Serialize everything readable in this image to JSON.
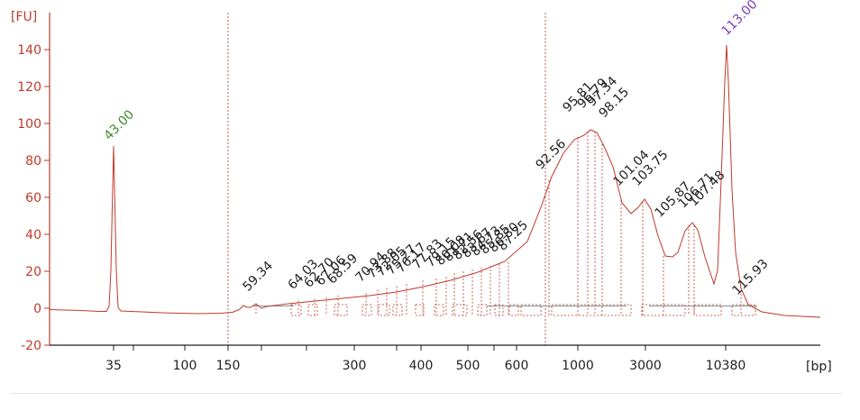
{
  "chart_data": {
    "type": "line",
    "y_unit": "[FU]",
    "x_unit": "[bp]",
    "ylim": [
      -20,
      160
    ],
    "y_ticks": [
      -20,
      0,
      20,
      40,
      60,
      80,
      100,
      120,
      140
    ],
    "x_ticks": [
      "35",
      "100",
      "150",
      "300",
      "400",
      "500",
      "600",
      "1000",
      "3000",
      "10380"
    ],
    "markers": [
      {
        "label": "43.00",
        "x": "35",
        "y": 94,
        "color": "#3c8c2a"
      },
      {
        "label": "113.00",
        "x": "10380",
        "y": 152,
        "color": "#7a3db8"
      }
    ],
    "peak_labels": [
      {
        "label": "59.34",
        "y": 4
      },
      {
        "label": "64.03",
        "y": 5
      },
      {
        "label": "62.70",
        "y": 6
      },
      {
        "label": "67.06",
        "y": 7
      },
      {
        "label": "68.59",
        "y": 8
      },
      {
        "label": "70.94",
        "y": 9
      },
      {
        "label": "73.88",
        "y": 11
      },
      {
        "label": "72.05",
        "y": 12
      },
      {
        "label": "75.27",
        "y": 13
      },
      {
        "label": "76.17",
        "y": 14
      },
      {
        "label": "77.83",
        "y": 16
      },
      {
        "label": "79.15",
        "y": 17
      },
      {
        "label": "80.08",
        "y": 18
      },
      {
        "label": "81.71",
        "y": 20
      },
      {
        "label": "82.56",
        "y": 21
      },
      {
        "label": "83.67",
        "y": 22
      },
      {
        "label": "84.73",
        "y": 23
      },
      {
        "label": "85.85",
        "y": 24
      },
      {
        "label": "86.80",
        "y": 25
      },
      {
        "label": "87.25",
        "y": 26
      },
      {
        "label": "92.56",
        "y": 70
      },
      {
        "label": "95.81",
        "y": 101
      },
      {
        "label": "96.79",
        "y": 103
      },
      {
        "label": "97.34",
        "y": 104
      },
      {
        "label": "98.15",
        "y": 98
      },
      {
        "label": "101.04",
        "y": 61
      },
      {
        "label": "103.75",
        "y": 61
      },
      {
        "label": "105.87",
        "y": 44
      },
      {
        "label": "106.71",
        "y": 49
      },
      {
        "label": "107.48",
        "y": 50
      },
      {
        "label": "115.93",
        "y": 2
      }
    ]
  }
}
